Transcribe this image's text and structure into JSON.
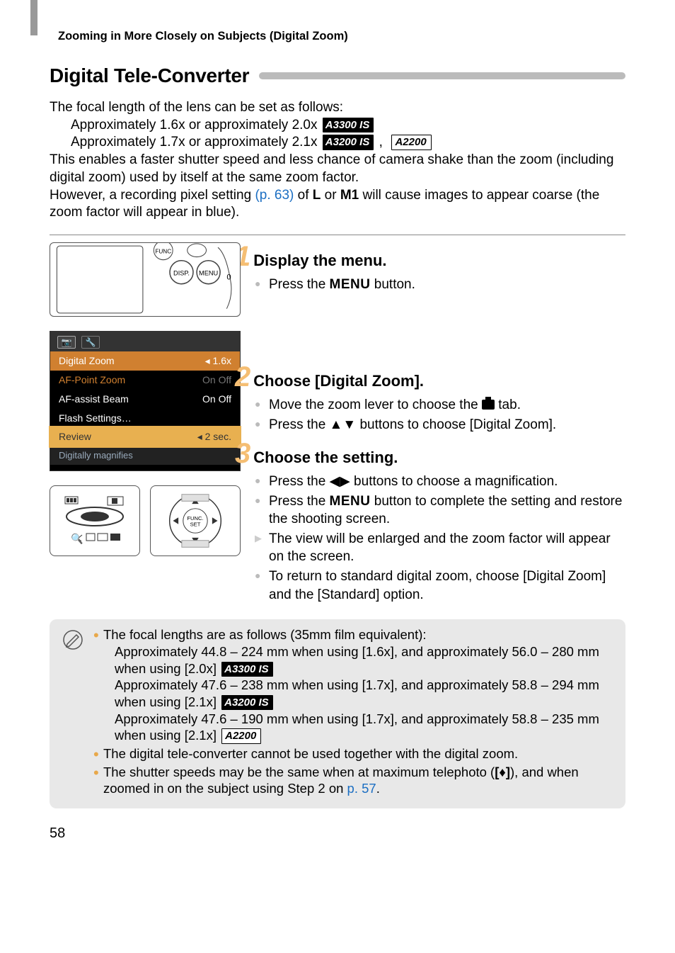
{
  "header": {
    "breadcrumb": "Zooming in More Closely on Subjects (Digital Zoom)"
  },
  "section": {
    "title": "Digital Tele-Converter"
  },
  "intro": {
    "line1": "The focal length of the lens can be set as follows:",
    "line2": "Approximately 1.6x or approximately 2.0x",
    "line3": "Approximately 1.7x or approximately 2.1x",
    "badges": {
      "a3300": "A3300 IS",
      "a3200": "A3200 IS",
      "a2200": "A2200"
    },
    "para2a": "This enables a faster shutter speed and less chance of camera shake than the zoom (including digital zoom) used by itself at the same zoom factor.",
    "para2b_pre": "However, a recording pixel setting ",
    "ref63": "(p. 63)",
    "para2b_mid": " of ",
    "glyphL": "L",
    "para2b_mid2": " or ",
    "glyphM1": "M1",
    "para2b_post": " will cause images to appear coarse (the zoom factor will appear in blue)."
  },
  "menu_shot": {
    "rows": [
      {
        "lbl": "Digital Zoom",
        "val": "◂ 1.6x",
        "cls": "hl"
      },
      {
        "lbl": "AF-Point Zoom",
        "val": "On  Off",
        "cls": "dim soft"
      },
      {
        "lbl": "AF-assist Beam",
        "val": "On  Off",
        "cls": ""
      },
      {
        "lbl": "Flash Settings…",
        "val": "",
        "cls": ""
      },
      {
        "lbl": "Review",
        "val": "◂ 2 sec.",
        "cls": "sel"
      }
    ],
    "footer": "Digitally magnifies"
  },
  "steps": {
    "s1": {
      "title": "Display the menu.",
      "b1_pre": "Press the ",
      "b1_menu": "MENU",
      "b1_post": " button."
    },
    "s2": {
      "title": "Choose [Digital Zoom].",
      "b1_pre": "Move the zoom lever to choose the ",
      "b1_post": " tab.",
      "b2_pre": "Press the ",
      "b2_mid": " buttons to choose [Digital Zoom]."
    },
    "s3": {
      "title": "Choose the setting.",
      "b1_pre": "Press the ",
      "b1_post": " buttons to choose a magnification.",
      "b2_pre": "Press the ",
      "b2_menu": "MENU",
      "b2_post": " button to complete the setting and restore the shooting screen.",
      "b3": "The view will be enlarged and the zoom factor will appear on the screen.",
      "b4": "To return to standard digital zoom, choose [Digital Zoom] and the [Standard] option."
    }
  },
  "notes": {
    "n1": "The focal lengths are as follows (35mm film equivalent):",
    "n1a": "Approximately 44.8 – 224 mm when using [1.6x], and approximately 56.0 – 280 mm when using [2.0x]",
    "n1b": "Approximately 47.6 – 238 mm when using [1.7x], and approximately 58.8 – 294 mm when using [2.1x]",
    "n1c": "Approximately 47.6 – 190 mm when using [1.7x], and approximately 58.8 – 235 mm when using [2.1x]",
    "n2": "The digital tele-converter cannot be used together with the digital zoom.",
    "n3_pre": "The shutter speeds may be the same when at maximum telephoto (",
    "n3_mid": "), and when zoomed in on the subject using Step 2 on ",
    "ref57": "p. 57",
    "n3_post": "."
  },
  "page": {
    "num": "58"
  }
}
